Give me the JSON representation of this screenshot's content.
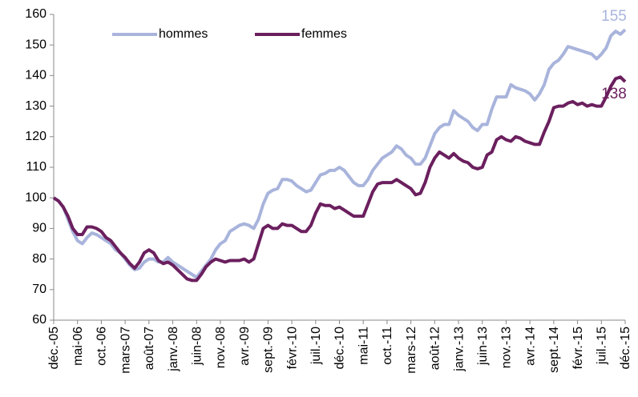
{
  "chart_data": {
    "type": "line",
    "categories": [
      "déc.-05",
      null,
      null,
      null,
      null,
      "mai-06",
      null,
      null,
      null,
      null,
      "oct.-06",
      null,
      null,
      null,
      null,
      "mars-07",
      null,
      null,
      null,
      null,
      "août-07",
      null,
      null,
      null,
      null,
      "janv.-08",
      null,
      null,
      null,
      null,
      "juin-08",
      null,
      null,
      null,
      null,
      "nov.-08",
      null,
      null,
      null,
      null,
      "avr.-09",
      null,
      null,
      null,
      null,
      "sept.-09",
      null,
      null,
      null,
      null,
      "févr.-10",
      null,
      null,
      null,
      null,
      "juil.-10",
      null,
      null,
      null,
      null,
      "déc.-10",
      null,
      null,
      null,
      null,
      "mai-11",
      null,
      null,
      null,
      null,
      "oct.-11",
      null,
      null,
      null,
      null,
      "mars-12",
      null,
      null,
      null,
      null,
      "août-12",
      null,
      null,
      null,
      null,
      "janv.-13",
      null,
      null,
      null,
      null,
      "juin-13",
      null,
      null,
      null,
      null,
      "nov.-13",
      null,
      null,
      null,
      null,
      "avr.-14",
      null,
      null,
      null,
      null,
      "sept.-14",
      null,
      null,
      null,
      null,
      "févr.-15",
      null,
      null,
      null,
      null,
      "juil.-15",
      null,
      null,
      null,
      null,
      "déc.-15"
    ],
    "series": [
      {
        "name": "hommes",
        "color": "#a9b4dc",
        "label_last": true,
        "values": [
          100,
          99,
          97,
          93,
          89,
          86,
          85,
          87,
          88.5,
          88,
          87,
          86,
          85,
          83,
          82,
          80,
          78,
          76.5,
          77,
          79,
          80,
          80,
          79,
          79,
          80.5,
          79,
          78,
          77,
          76,
          75,
          74,
          76,
          78,
          80,
          83,
          85,
          86,
          89,
          90,
          91,
          91.5,
          91,
          90,
          93,
          98,
          101.5,
          102.5,
          103,
          106,
          106,
          105.5,
          104,
          103,
          102,
          102.5,
          105,
          107.5,
          108,
          109,
          109,
          110,
          109,
          107,
          105,
          104,
          104,
          106,
          109,
          111,
          113,
          114,
          115,
          117,
          116,
          114,
          113,
          111,
          111,
          113,
          117,
          121,
          123,
          124,
          124,
          128.5,
          127,
          126,
          125,
          123,
          122,
          124,
          124,
          129,
          133,
          133,
          133,
          137,
          136,
          135.5,
          135,
          134,
          132,
          134,
          137,
          142,
          144,
          145,
          147,
          149.5,
          149,
          148.5,
          148,
          147.5,
          147,
          145.5,
          147,
          149,
          153,
          154.5,
          153.5,
          155
        ]
      },
      {
        "name": "femmes",
        "color": "#6b1f5e",
        "label_last": true,
        "values": [
          100,
          99,
          97,
          94,
          90,
          88,
          88,
          90.5,
          90.5,
          90,
          89,
          87,
          86,
          84,
          82,
          80.5,
          78.5,
          77,
          79,
          82,
          83,
          82,
          79.5,
          78.5,
          79,
          78,
          76.5,
          75,
          73.5,
          73,
          73,
          75,
          77.5,
          79,
          80,
          79.5,
          79,
          79.5,
          79.5,
          79.5,
          80,
          79,
          80,
          85,
          90,
          91,
          90,
          90,
          91.5,
          91,
          91,
          90,
          89,
          89,
          91,
          95,
          98,
          97.5,
          97.5,
          96.5,
          97,
          96,
          95,
          94,
          94,
          94,
          98,
          102,
          104.5,
          105,
          105,
          105,
          106,
          105,
          104,
          103,
          101,
          101.5,
          105,
          110,
          113,
          115,
          114,
          113,
          114.5,
          113,
          112,
          111.5,
          110,
          109.5,
          110,
          114,
          115,
          119,
          120,
          119,
          118.5,
          120,
          119.5,
          118.5,
          118,
          117.5,
          117.5,
          121.5,
          125,
          129.5,
          130,
          130,
          131,
          131.5,
          130.5,
          131,
          130,
          130.5,
          130,
          130,
          133,
          136.5,
          139,
          139.5,
          138
        ]
      }
    ],
    "ylim": [
      60,
      160
    ],
    "yticks": [
      60,
      70,
      80,
      90,
      100,
      110,
      120,
      130,
      140,
      150,
      160
    ],
    "grid": false,
    "legend": "top-left"
  }
}
